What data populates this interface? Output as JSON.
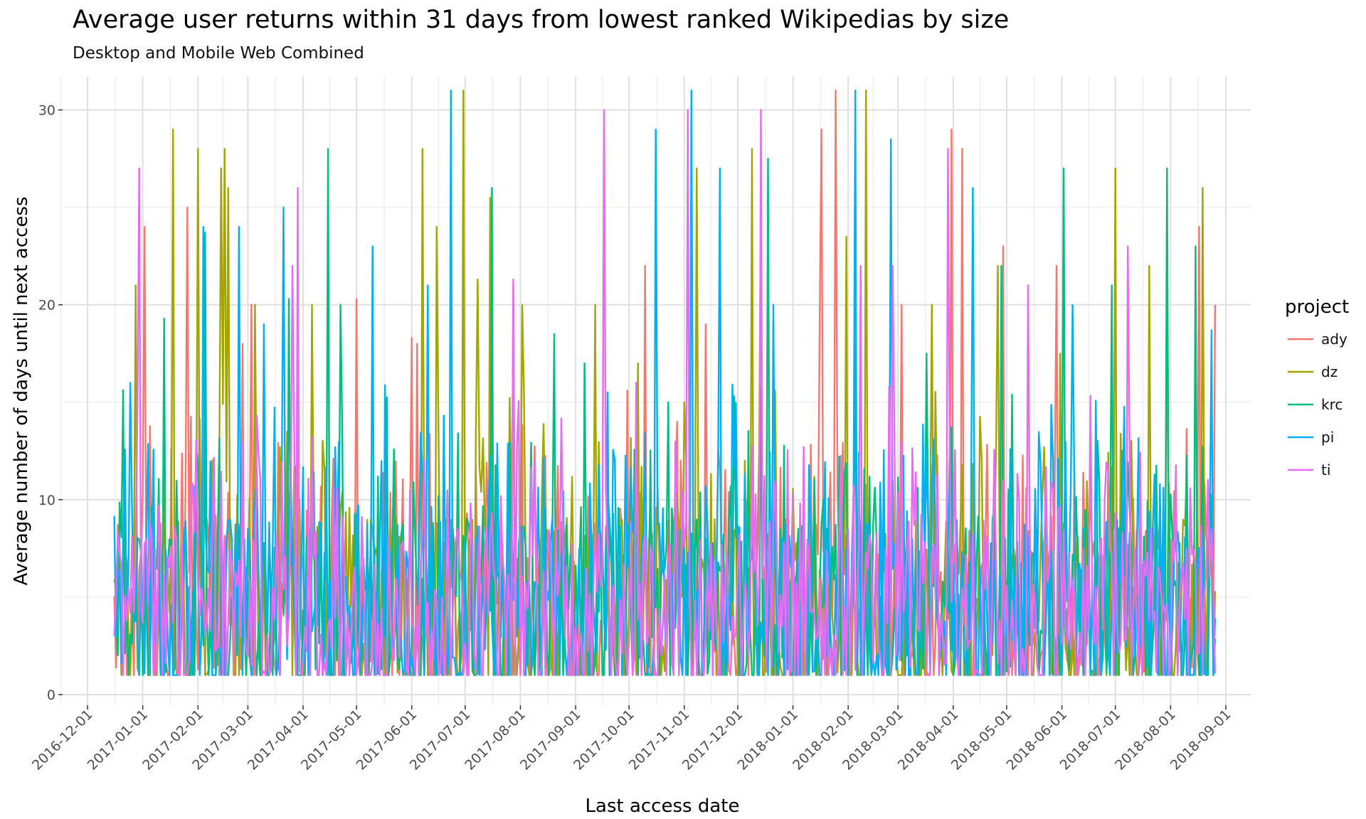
{
  "title": "Average user returns within 31 days from lowest ranked Wikipedias by size",
  "subtitle": "Desktop and Mobile Web Combined",
  "chart_data": {
    "type": "line",
    "title": "Average user returns within 31 days from lowest ranked Wikipedias by size",
    "subtitle": "Desktop and Mobile Web Combined",
    "xlabel": "Last access date",
    "ylabel": "Average number of days until next access",
    "xlim": [
      "2016-11-17",
      "2018-09-15"
    ],
    "ylim": [
      0,
      31
    ],
    "x_ticks": [
      "2016-12-01",
      "2017-01-01",
      "2017-02-01",
      "2017-03-01",
      "2017-04-01",
      "2017-05-01",
      "2017-06-01",
      "2017-07-01",
      "2017-08-01",
      "2017-09-01",
      "2017-10-01",
      "2017-11-01",
      "2017-12-01",
      "2018-01-01",
      "2018-02-01",
      "2018-03-01",
      "2018-04-01",
      "2018-05-01",
      "2018-06-01",
      "2018-07-01",
      "2018-08-01",
      "2018-09-01"
    ],
    "y_ticks": [
      0,
      10,
      20,
      30
    ],
    "grid": true,
    "legend": {
      "title": "project",
      "position": "right"
    },
    "date_range": [
      "2016-12-16",
      "2018-08-26"
    ],
    "series": [
      {
        "name": "ady",
        "color": "#F8766D",
        "peaks": [
          [
            "2017-01-02",
            24
          ],
          [
            "2017-01-26",
            25
          ],
          [
            "2017-02-26",
            18
          ],
          [
            "2017-03-03",
            20
          ],
          [
            "2017-05-01",
            20.3
          ],
          [
            "2017-06-01",
            18.3
          ],
          [
            "2017-06-04",
            18
          ],
          [
            "2017-07-28",
            21
          ],
          [
            "2017-10-10",
            22
          ],
          [
            "2017-10-28",
            14
          ],
          [
            "2017-11-13",
            19
          ],
          [
            "2018-01-16",
            19
          ],
          [
            "2018-01-17",
            29
          ],
          [
            "2018-01-25",
            31
          ],
          [
            "2018-03-03",
            20
          ],
          [
            "2018-03-31",
            29
          ],
          [
            "2018-04-06",
            28
          ],
          [
            "2018-04-29",
            23
          ],
          [
            "2018-05-29",
            22
          ],
          [
            "2018-07-30",
            20
          ],
          [
            "2018-08-17",
            24
          ],
          [
            "2018-08-26",
            20
          ]
        ]
      },
      {
        "name": "dz",
        "color": "#A3A500",
        "peaks": [
          [
            "2016-12-28",
            21
          ],
          [
            "2017-01-18",
            29
          ],
          [
            "2017-02-01",
            28
          ],
          [
            "2017-02-14",
            27
          ],
          [
            "2017-02-16",
            28
          ],
          [
            "2017-02-18",
            26
          ],
          [
            "2017-03-05",
            20
          ],
          [
            "2017-04-06",
            20
          ],
          [
            "2017-06-07",
            28
          ],
          [
            "2017-06-15",
            24
          ],
          [
            "2017-06-30",
            31
          ],
          [
            "2017-07-08",
            21.3
          ],
          [
            "2017-07-15",
            25.5
          ],
          [
            "2017-08-02",
            20
          ],
          [
            "2017-09-12",
            20
          ],
          [
            "2017-10-06",
            17
          ],
          [
            "2017-11-08",
            27
          ],
          [
            "2017-12-09",
            28
          ],
          [
            "2017-12-14",
            25
          ],
          [
            "2018-01-31",
            23.5
          ],
          [
            "2018-02-11",
            31
          ],
          [
            "2018-03-20",
            20
          ],
          [
            "2018-04-26",
            22
          ],
          [
            "2018-05-31",
            17.5
          ],
          [
            "2018-07-01",
            27
          ],
          [
            "2018-07-20",
            22
          ],
          [
            "2018-08-19",
            26
          ]
        ]
      },
      {
        "name": "krc",
        "color": "#00BF7D",
        "peaks": [
          [
            "2017-01-13",
            19.3
          ],
          [
            "2017-02-05",
            23.7
          ],
          [
            "2017-03-24",
            20.3
          ],
          [
            "2017-04-15",
            28
          ],
          [
            "2017-04-22",
            20
          ],
          [
            "2017-07-16",
            26
          ],
          [
            "2017-08-20",
            18.5
          ],
          [
            "2017-09-06",
            17
          ],
          [
            "2017-10-23",
            15
          ],
          [
            "2017-12-18",
            27.5
          ],
          [
            "2018-02-05",
            18
          ],
          [
            "2018-03-17",
            17.5
          ],
          [
            "2018-04-28",
            22
          ],
          [
            "2018-06-02",
            27
          ],
          [
            "2018-06-29",
            21
          ],
          [
            "2018-07-30",
            27
          ],
          [
            "2018-08-15",
            23
          ]
        ]
      },
      {
        "name": "pi",
        "color": "#00B0F6",
        "peaks": [
          [
            "2016-12-25",
            16
          ],
          [
            "2017-02-04",
            24
          ],
          [
            "2017-02-24",
            24
          ],
          [
            "2017-03-10",
            19
          ],
          [
            "2017-03-21",
            25
          ],
          [
            "2017-05-10",
            23
          ],
          [
            "2017-06-10",
            21
          ],
          [
            "2017-06-23",
            31
          ],
          [
            "2017-10-16",
            29
          ],
          [
            "2017-11-05",
            31
          ],
          [
            "2017-11-21",
            27
          ],
          [
            "2017-12-21",
            20
          ],
          [
            "2018-02-05",
            31
          ],
          [
            "2018-02-25",
            28.5
          ],
          [
            "2018-04-12",
            26
          ],
          [
            "2018-06-07",
            20
          ],
          [
            "2018-08-24",
            18.7
          ]
        ]
      },
      {
        "name": "ti",
        "color": "#E76BF3",
        "peaks": [
          [
            "2016-12-30",
            27
          ],
          [
            "2017-03-29",
            26
          ],
          [
            "2017-03-26",
            22
          ],
          [
            "2017-07-28",
            21.3
          ],
          [
            "2017-09-17",
            30
          ],
          [
            "2017-10-05",
            16
          ],
          [
            "2017-11-03",
            30
          ],
          [
            "2017-12-14",
            30
          ],
          [
            "2018-02-08",
            22
          ],
          [
            "2018-02-26",
            22
          ],
          [
            "2018-03-29",
            28
          ],
          [
            "2018-05-13",
            21
          ],
          [
            "2018-07-08",
            23
          ]
        ]
      }
    ]
  }
}
